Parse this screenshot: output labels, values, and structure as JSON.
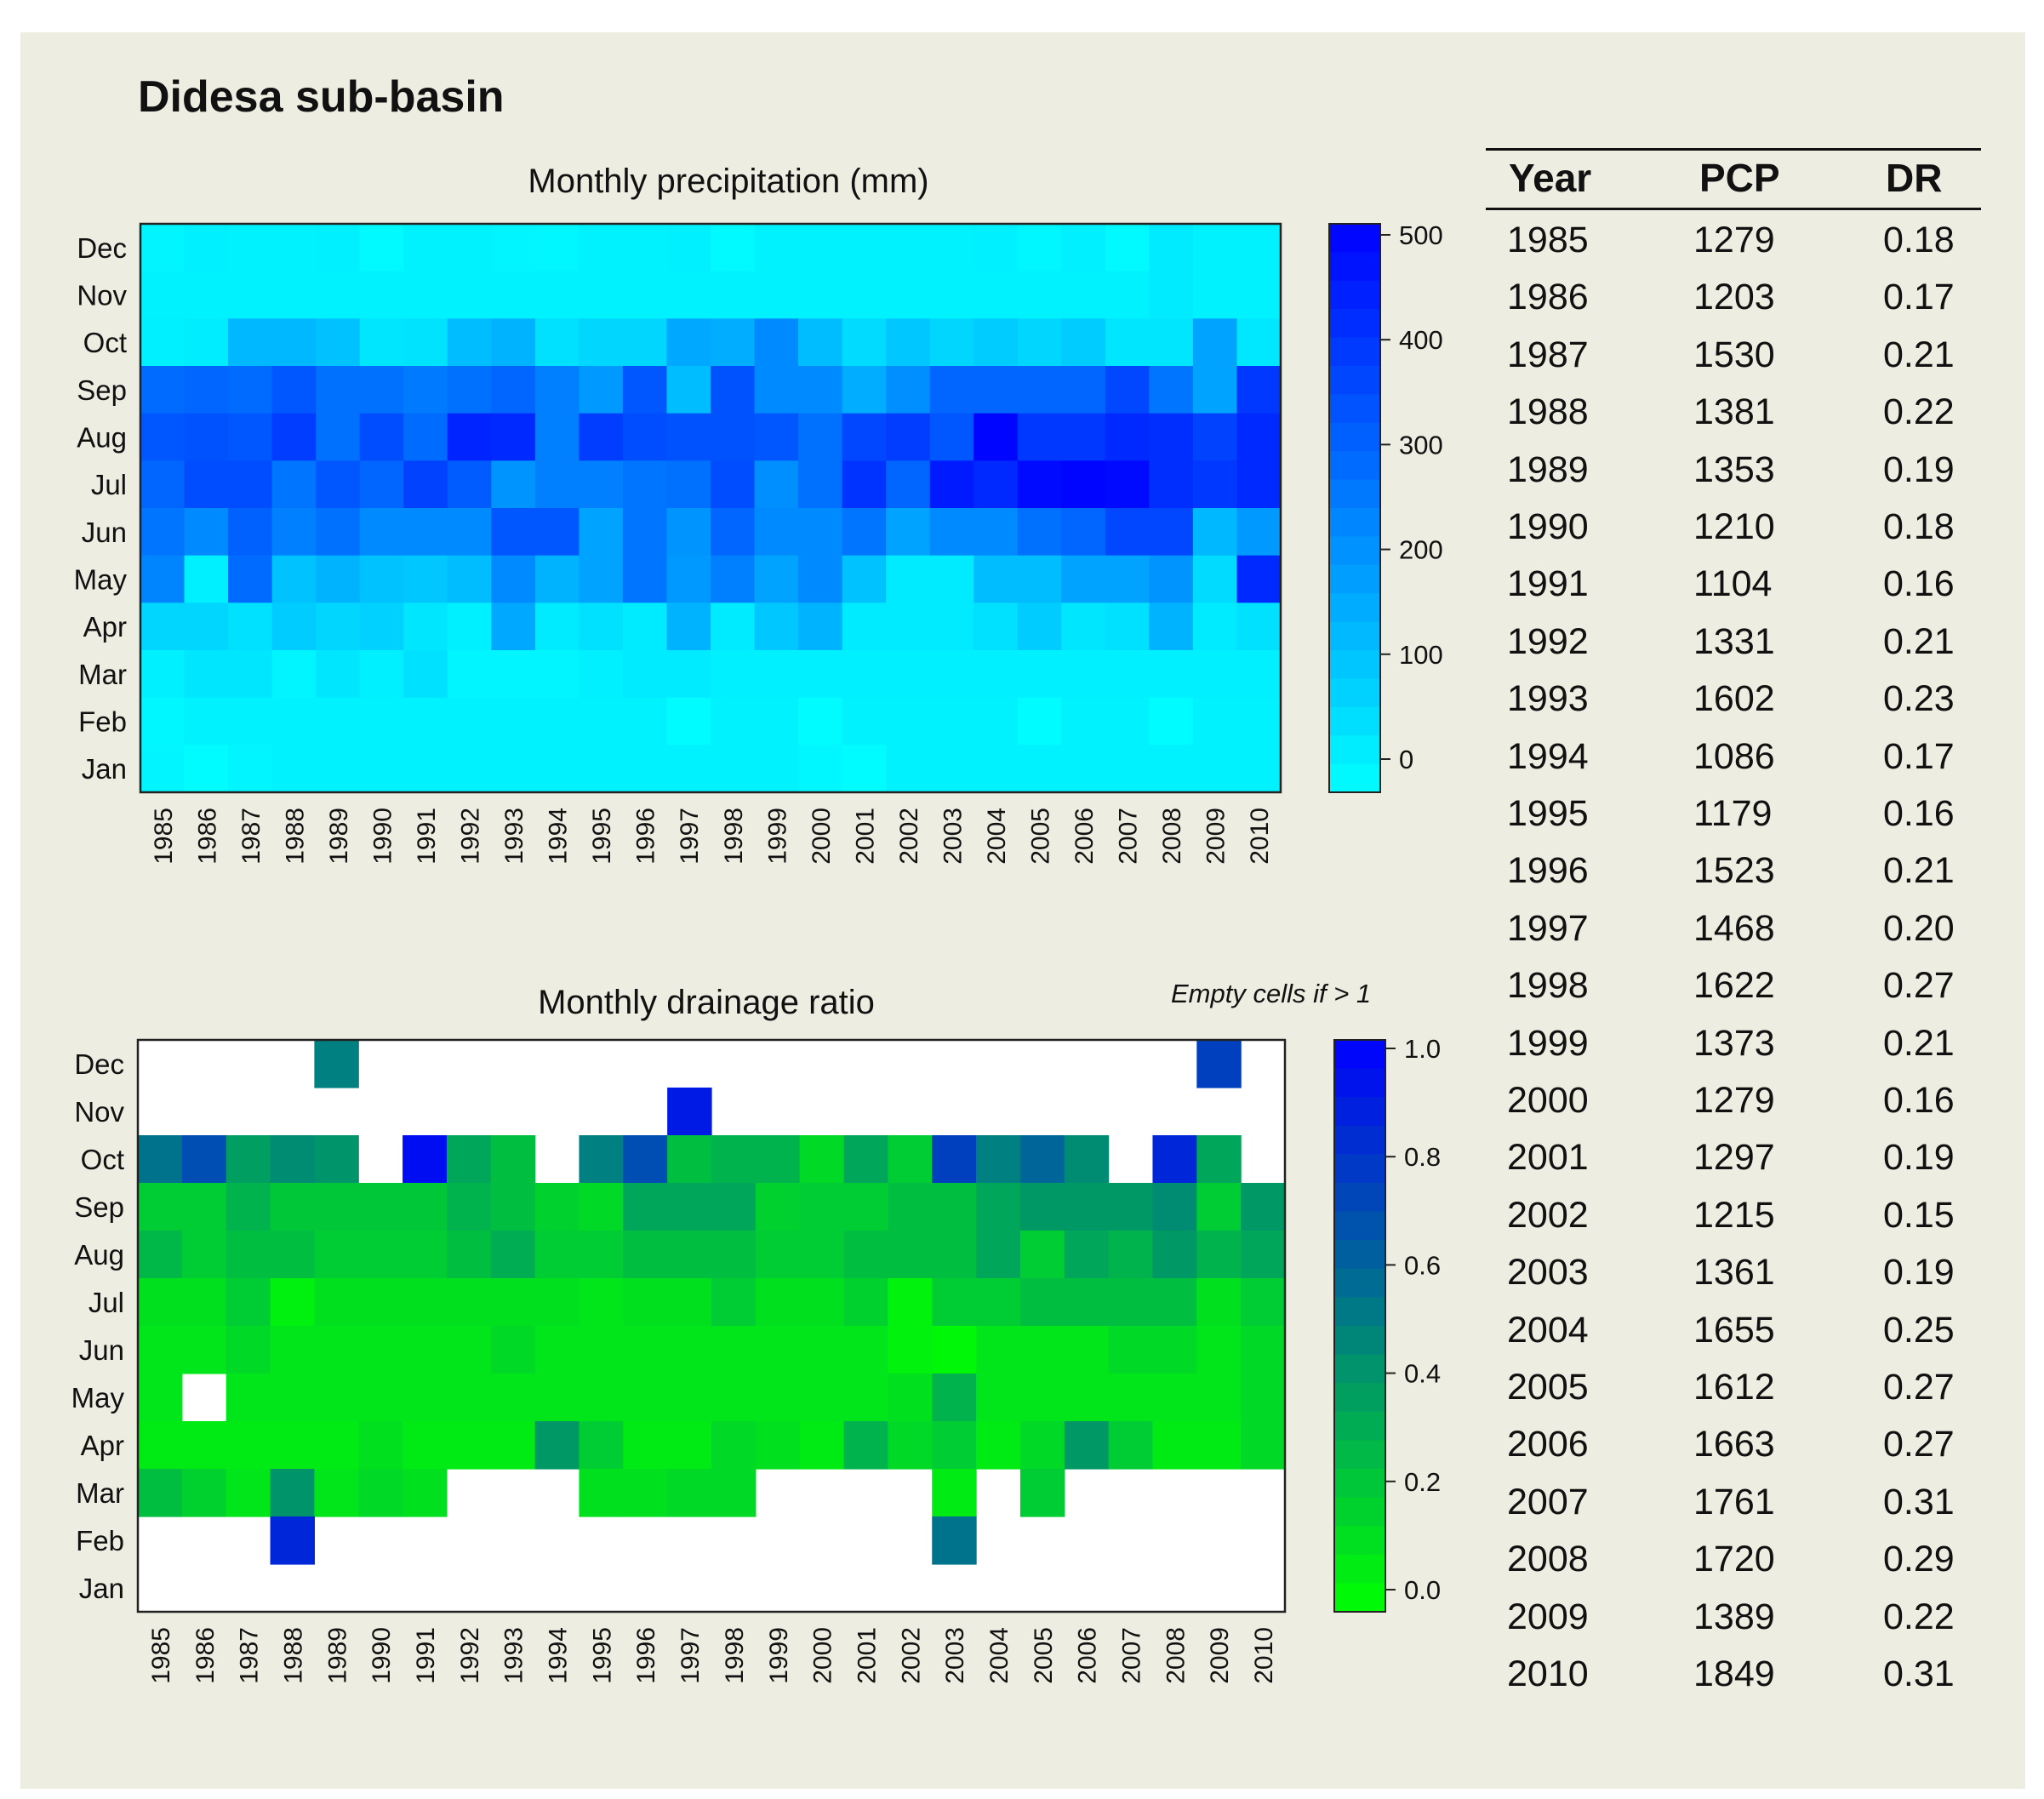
{
  "figure_title": "Didesa sub-basin",
  "chart_data": [
    {
      "type": "heatmap",
      "id": "precip",
      "title": "Monthly precipitation (mm)",
      "x": [
        "1985",
        "1986",
        "1987",
        "1988",
        "1989",
        "1990",
        "1991",
        "1992",
        "1993",
        "1994",
        "1995",
        "1996",
        "1997",
        "1998",
        "1999",
        "2000",
        "2001",
        "2002",
        "2003",
        "2004",
        "2005",
        "2006",
        "2007",
        "2008",
        "2009",
        "2010"
      ],
      "y": [
        "Dec",
        "Nov",
        "Oct",
        "Sep",
        "Aug",
        "Jul",
        "Jun",
        "May",
        "Apr",
        "Mar",
        "Feb",
        "Jan"
      ],
      "colorbar": {
        "min": 0,
        "max": 500,
        "ticks": [
          "0",
          "100",
          "200",
          "300",
          "400",
          "500"
        ],
        "low_color": "#00ffff",
        "high_color": "#0000ff"
      },
      "values": [
        [
          20,
          30,
          25,
          25,
          30,
          10,
          25,
          25,
          20,
          15,
          25,
          25,
          30,
          10,
          25,
          25,
          25,
          25,
          25,
          30,
          15,
          30,
          10,
          40,
          25,
          25
        ],
        [
          25,
          25,
          25,
          25,
          25,
          25,
          25,
          25,
          25,
          25,
          25,
          25,
          25,
          25,
          25,
          25,
          25,
          25,
          25,
          25,
          25,
          25,
          25,
          40,
          25,
          25
        ],
        [
          30,
          35,
          140,
          140,
          120,
          50,
          55,
          130,
          150,
          60,
          80,
          80,
          170,
          160,
          230,
          130,
          70,
          110,
          80,
          100,
          80,
          100,
          50,
          50,
          180,
          45
        ],
        [
          290,
          300,
          290,
          330,
          280,
          280,
          260,
          280,
          300,
          250,
          200,
          330,
          130,
          340,
          230,
          230,
          160,
          220,
          300,
          300,
          300,
          300,
          360,
          270,
          180,
          390
        ],
        [
          330,
          340,
          330,
          380,
          280,
          350,
          290,
          430,
          420,
          250,
          380,
          350,
          340,
          340,
          330,
          280,
          360,
          380,
          330,
          490,
          390,
          390,
          420,
          410,
          370,
          420
        ],
        [
          300,
          350,
          350,
          270,
          330,
          300,
          370,
          320,
          210,
          250,
          250,
          270,
          280,
          350,
          220,
          280,
          400,
          300,
          450,
          420,
          480,
          490,
          480,
          410,
          390,
          420
        ],
        [
          270,
          230,
          310,
          250,
          280,
          230,
          230,
          230,
          330,
          330,
          180,
          270,
          210,
          300,
          230,
          230,
          270,
          180,
          230,
          230,
          280,
          300,
          360,
          360,
          140,
          200
        ],
        [
          240,
          30,
          290,
          120,
          150,
          120,
          110,
          130,
          230,
          150,
          180,
          270,
          200,
          250,
          180,
          230,
          120,
          40,
          40,
          130,
          130,
          180,
          180,
          210,
          70,
          420
        ],
        [
          80,
          80,
          60,
          100,
          80,
          90,
          50,
          30,
          170,
          40,
          60,
          40,
          150,
          40,
          110,
          150,
          40,
          40,
          40,
          60,
          100,
          50,
          60,
          150,
          40,
          60
        ],
        [
          30,
          50,
          50,
          20,
          50,
          30,
          60,
          20,
          20,
          20,
          30,
          40,
          40,
          30,
          30,
          30,
          30,
          30,
          30,
          30,
          30,
          30,
          30,
          30,
          30,
          30
        ],
        [
          15,
          25,
          25,
          25,
          25,
          25,
          25,
          25,
          25,
          25,
          25,
          25,
          5,
          25,
          25,
          5,
          25,
          25,
          25,
          25,
          5,
          25,
          25,
          5,
          25,
          25
        ],
        [
          20,
          5,
          20,
          25,
          25,
          25,
          25,
          25,
          25,
          25,
          25,
          25,
          25,
          25,
          25,
          15,
          5,
          25,
          25,
          25,
          25,
          25,
          25,
          25,
          25,
          25
        ]
      ]
    },
    {
      "type": "heatmap",
      "id": "drainage",
      "title": "Monthly drainage ratio",
      "annotation": "Empty cells if > 1",
      "x": [
        "1985",
        "1986",
        "1987",
        "1988",
        "1989",
        "1990",
        "1991",
        "1992",
        "1993",
        "1994",
        "1995",
        "1996",
        "1997",
        "1998",
        "1999",
        "2000",
        "2001",
        "2002",
        "2003",
        "2004",
        "2005",
        "2006",
        "2007",
        "2008",
        "2009",
        "2010"
      ],
      "y": [
        "Dec",
        "Nov",
        "Oct",
        "Sep",
        "Aug",
        "Jul",
        "Jun",
        "May",
        "Apr",
        "Mar",
        "Feb",
        "Jan"
      ],
      "colorbar": {
        "min": 0,
        "max": 1,
        "ticks": [
          "0.0",
          "0.2",
          "0.4",
          "0.6",
          "0.8",
          "1.0"
        ],
        "low_color": "#00ff00",
        "high_color": "#0000ff"
      },
      "values": [
        [
          null,
          null,
          null,
          null,
          0.5,
          null,
          null,
          null,
          null,
          null,
          null,
          null,
          null,
          null,
          null,
          null,
          null,
          null,
          null,
          null,
          null,
          null,
          null,
          null,
          0.75,
          null
        ],
        [
          null,
          null,
          null,
          null,
          null,
          null,
          null,
          null,
          null,
          null,
          null,
          null,
          0.9,
          null,
          null,
          null,
          null,
          null,
          null,
          null,
          null,
          null,
          null,
          null,
          null,
          null
        ],
        [
          0.55,
          0.7,
          0.38,
          0.45,
          0.42,
          null,
          0.95,
          0.35,
          0.25,
          null,
          0.5,
          0.7,
          0.25,
          0.3,
          0.3,
          0.15,
          0.35,
          0.2,
          0.75,
          0.5,
          0.6,
          0.45,
          null,
          0.85,
          0.35,
          null
        ],
        [
          0.2,
          0.2,
          0.3,
          0.22,
          0.22,
          0.22,
          0.22,
          0.3,
          0.25,
          0.18,
          0.15,
          0.35,
          0.35,
          0.35,
          0.18,
          0.2,
          0.2,
          0.25,
          0.25,
          0.35,
          0.4,
          0.4,
          0.4,
          0.45,
          0.2,
          0.4
        ],
        [
          0.28,
          0.2,
          0.25,
          0.25,
          0.2,
          0.2,
          0.2,
          0.25,
          0.32,
          0.2,
          0.2,
          0.25,
          0.25,
          0.25,
          0.2,
          0.2,
          0.25,
          0.25,
          0.25,
          0.35,
          0.2,
          0.35,
          0.3,
          0.4,
          0.3,
          0.35
        ],
        [
          0.12,
          0.12,
          0.2,
          0.06,
          0.12,
          0.12,
          0.12,
          0.12,
          0.12,
          0.12,
          0.1,
          0.12,
          0.12,
          0.2,
          0.12,
          0.12,
          0.18,
          0.05,
          0.2,
          0.2,
          0.25,
          0.25,
          0.25,
          0.25,
          0.12,
          0.2
        ],
        [
          0.1,
          0.1,
          0.15,
          0.1,
          0.1,
          0.1,
          0.1,
          0.1,
          0.15,
          0.1,
          0.1,
          0.1,
          0.1,
          0.1,
          0.1,
          0.1,
          0.1,
          0.05,
          0.03,
          0.1,
          0.1,
          0.1,
          0.15,
          0.15,
          0.1,
          0.15
        ],
        [
          0.1,
          null,
          0.1,
          0.1,
          0.1,
          0.1,
          0.1,
          0.1,
          0.1,
          0.1,
          0.1,
          0.1,
          0.1,
          0.1,
          0.1,
          0.1,
          0.1,
          0.12,
          0.3,
          0.1,
          0.1,
          0.1,
          0.1,
          0.1,
          0.1,
          0.15
        ],
        [
          0.08,
          0.08,
          0.08,
          0.08,
          0.08,
          0.12,
          0.08,
          0.08,
          0.08,
          0.4,
          0.2,
          0.08,
          0.08,
          0.15,
          0.12,
          0.08,
          0.3,
          0.15,
          0.2,
          0.08,
          0.15,
          0.4,
          0.2,
          0.08,
          0.08,
          0.15
        ],
        [
          0.25,
          0.18,
          0.1,
          0.42,
          0.1,
          0.15,
          0.12,
          null,
          null,
          null,
          0.12,
          0.12,
          0.15,
          0.15,
          null,
          null,
          null,
          null,
          0.08,
          null,
          0.2,
          null,
          null,
          null,
          null,
          null
        ],
        [
          null,
          null,
          null,
          0.85,
          null,
          null,
          null,
          null,
          null,
          null,
          null,
          null,
          null,
          null,
          null,
          null,
          null,
          null,
          0.55,
          null,
          null,
          null,
          null,
          null,
          null,
          null
        ],
        [
          null,
          null,
          null,
          null,
          null,
          null,
          null,
          null,
          null,
          null,
          null,
          null,
          null,
          null,
          null,
          null,
          null,
          null,
          null,
          null,
          null,
          null,
          null,
          null,
          null,
          null
        ]
      ]
    },
    {
      "type": "table",
      "id": "annual",
      "columns": [
        "Year",
        "PCP",
        "DR"
      ],
      "rows": [
        [
          "1985",
          "1279",
          "0.18"
        ],
        [
          "1986",
          "1203",
          "0.17"
        ],
        [
          "1987",
          "1530",
          "0.21"
        ],
        [
          "1988",
          "1381",
          "0.22"
        ],
        [
          "1989",
          "1353",
          "0.19"
        ],
        [
          "1990",
          "1210",
          "0.18"
        ],
        [
          "1991",
          "1104",
          "0.16"
        ],
        [
          "1992",
          "1331",
          "0.21"
        ],
        [
          "1993",
          "1602",
          "0.23"
        ],
        [
          "1994",
          "1086",
          "0.17"
        ],
        [
          "1995",
          "1179",
          "0.16"
        ],
        [
          "1996",
          "1523",
          "0.21"
        ],
        [
          "1997",
          "1468",
          "0.20"
        ],
        [
          "1998",
          "1622",
          "0.27"
        ],
        [
          "1999",
          "1373",
          "0.21"
        ],
        [
          "2000",
          "1279",
          "0.16"
        ],
        [
          "2001",
          "1297",
          "0.19"
        ],
        [
          "2002",
          "1215",
          "0.15"
        ],
        [
          "2003",
          "1361",
          "0.19"
        ],
        [
          "2004",
          "1655",
          "0.25"
        ],
        [
          "2005",
          "1612",
          "0.27"
        ],
        [
          "2006",
          "1663",
          "0.27"
        ],
        [
          "2007",
          "1761",
          "0.31"
        ],
        [
          "2008",
          "1720",
          "0.29"
        ],
        [
          "2009",
          "1389",
          "0.22"
        ],
        [
          "2010",
          "1849",
          "0.31"
        ]
      ]
    }
  ]
}
